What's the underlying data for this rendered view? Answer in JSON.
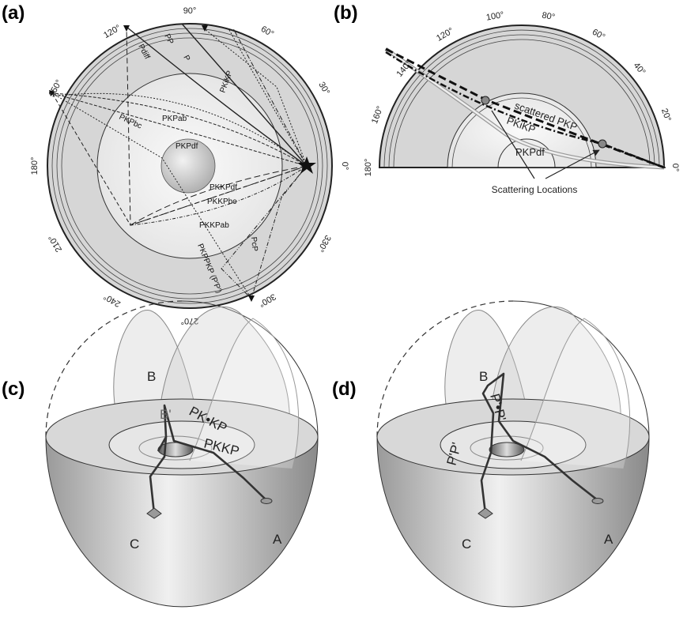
{
  "panels": [
    {
      "label": "(a)",
      "angles": [
        "90°",
        "60°",
        "30°",
        "0°",
        "330°",
        "300°",
        "270°",
        "240°",
        "210°",
        "180°",
        "150°",
        "120°"
      ],
      "phases": [
        "Pdiff",
        "PP",
        "P",
        "PKiKP",
        "PKPab",
        "PKPbc",
        "PKPdf",
        "PKKPdf",
        "PKKPbc",
        "PKKPab",
        "PcP",
        "PKPPKP (P'P')"
      ]
    },
    {
      "label": "(b)",
      "angles": [
        "140°",
        "120°",
        "100°",
        "80°",
        "60°",
        "40°",
        "20°",
        "0°",
        "160°",
        "180°"
      ],
      "phases": [
        "scattered PKP",
        "PKiKP",
        "PKPdf"
      ],
      "note": "Scattering Locations"
    },
    {
      "label": "(c)",
      "points": [
        "B",
        "B'",
        "C",
        "A"
      ],
      "phases": [
        "PK•KP",
        "PKKP"
      ]
    },
    {
      "label": "(d)",
      "points": [
        "B",
        "C",
        "A"
      ],
      "phases": [
        "P'•P'",
        "P'P'"
      ]
    }
  ]
}
